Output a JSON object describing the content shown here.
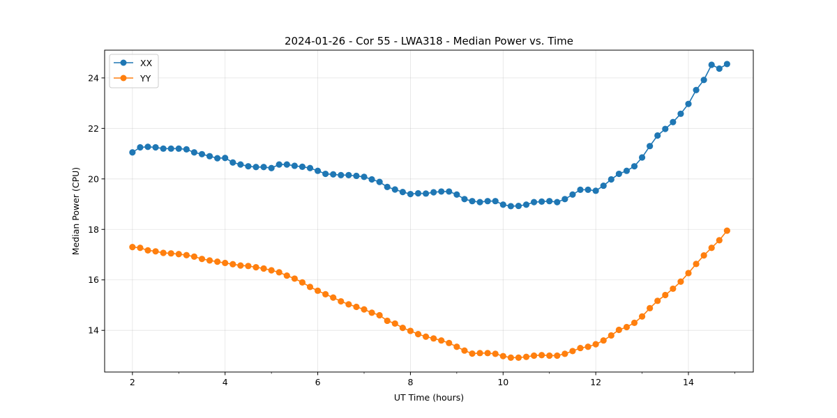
{
  "chart_data": {
    "type": "line",
    "title": "2024-01-26 - Cor 55 - LWA318 - Median Power vs. Time",
    "xlabel": "UT Time (hours)",
    "ylabel": "Median Power (CPU)",
    "xlim": [
      1.4,
      15.4
    ],
    "ylim": [
      12.35,
      25.1
    ],
    "xticks": [
      2,
      4,
      6,
      8,
      10,
      12,
      14
    ],
    "xtick_labels": [
      "2",
      "4",
      "6",
      "8",
      "10",
      "12",
      "14"
    ],
    "yticks": [
      14,
      16,
      18,
      20,
      22,
      24
    ],
    "ytick_labels": [
      "14",
      "16",
      "18",
      "20",
      "22",
      "24"
    ],
    "grid": true,
    "legend_position": "top-left",
    "x": [
      2.0,
      2.1667,
      2.3333,
      2.5,
      2.6667,
      2.8333,
      3.0,
      3.1667,
      3.3333,
      3.5,
      3.6667,
      3.8333,
      4.0,
      4.1667,
      4.3333,
      4.5,
      4.6667,
      4.8333,
      5.0,
      5.1667,
      5.3333,
      5.5,
      5.6667,
      5.8333,
      6.0,
      6.1667,
      6.3333,
      6.5,
      6.6667,
      6.8333,
      7.0,
      7.1667,
      7.3333,
      7.5,
      7.6667,
      7.8333,
      8.0,
      8.1667,
      8.3333,
      8.5,
      8.6667,
      8.8333,
      9.0,
      9.1667,
      9.3333,
      9.5,
      9.6667,
      9.8333,
      10.0,
      10.1667,
      10.3333,
      10.5,
      10.6667,
      10.8333,
      11.0,
      11.1667,
      11.3333,
      11.5,
      11.6667,
      11.8333,
      12.0,
      12.1667,
      12.3333,
      12.5,
      12.6667,
      12.8333,
      13.0,
      13.1667,
      13.3333,
      13.5,
      13.6667,
      13.8333,
      14.0,
      14.1667,
      14.3333,
      14.5,
      14.6667,
      14.8333
    ],
    "series": [
      {
        "name": "XX",
        "color": "#1f77b4",
        "values": [
          21.05,
          21.25,
          21.27,
          21.25,
          21.2,
          21.2,
          21.2,
          21.17,
          21.05,
          20.98,
          20.9,
          20.82,
          20.83,
          20.65,
          20.57,
          20.5,
          20.47,
          20.47,
          20.43,
          20.57,
          20.57,
          20.52,
          20.48,
          20.43,
          20.32,
          20.2,
          20.18,
          20.15,
          20.15,
          20.12,
          20.08,
          19.98,
          19.88,
          19.68,
          19.58,
          19.48,
          19.4,
          19.43,
          19.42,
          19.47,
          19.5,
          19.5,
          19.38,
          19.2,
          19.12,
          19.08,
          19.12,
          19.12,
          18.98,
          18.92,
          18.93,
          18.98,
          19.08,
          19.1,
          19.12,
          19.08,
          19.2,
          19.38,
          19.57,
          19.57,
          19.53,
          19.73,
          19.98,
          20.2,
          20.32,
          20.5,
          20.85,
          21.3,
          21.72,
          21.98,
          22.25,
          22.58,
          22.97,
          23.52,
          23.92,
          24.52,
          24.37,
          24.55
        ]
      },
      {
        "name": "YY",
        "color": "#ff7f0e",
        "values": [
          17.3,
          17.27,
          17.17,
          17.13,
          17.07,
          17.05,
          17.02,
          16.98,
          16.92,
          16.83,
          16.77,
          16.72,
          16.67,
          16.62,
          16.57,
          16.55,
          16.5,
          16.45,
          16.38,
          16.3,
          16.17,
          16.05,
          15.9,
          15.72,
          15.57,
          15.43,
          15.3,
          15.15,
          15.03,
          14.93,
          14.83,
          14.7,
          14.6,
          14.38,
          14.27,
          14.1,
          13.98,
          13.85,
          13.75,
          13.68,
          13.6,
          13.5,
          13.35,
          13.2,
          13.08,
          13.1,
          13.1,
          13.07,
          12.98,
          12.92,
          12.92,
          12.95,
          13.0,
          13.02,
          13.0,
          13.0,
          13.07,
          13.18,
          13.3,
          13.35,
          13.45,
          13.6,
          13.8,
          14.02,
          14.13,
          14.3,
          14.55,
          14.88,
          15.17,
          15.4,
          15.65,
          15.93,
          16.27,
          16.63,
          16.97,
          17.27,
          17.57,
          17.95
        ]
      }
    ]
  }
}
